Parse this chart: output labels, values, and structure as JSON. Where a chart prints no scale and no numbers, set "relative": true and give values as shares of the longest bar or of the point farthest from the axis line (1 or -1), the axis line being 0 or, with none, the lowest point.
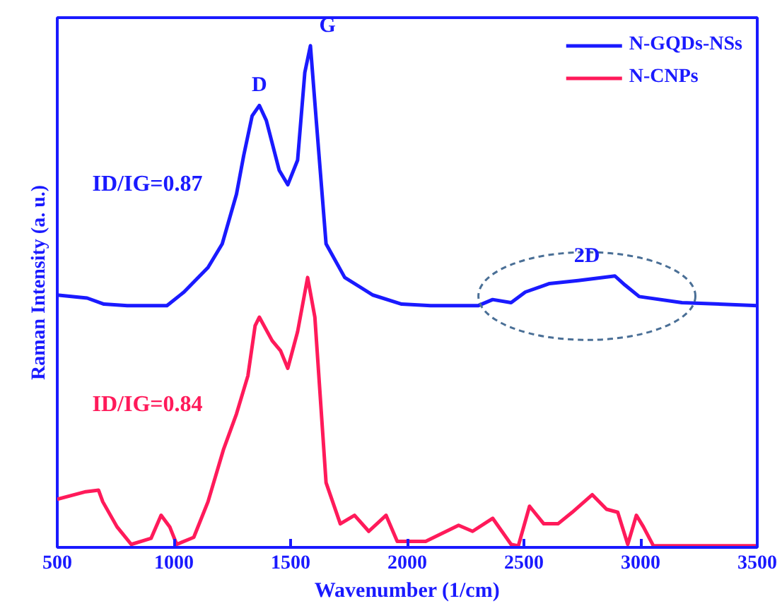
{
  "chart_data": {
    "type": "line",
    "relative": true,
    "xlabel": "Wavenumber (1/cm)",
    "ylabel": "Raman Intensity (a. u.)",
    "xlim": [
      500,
      3500
    ],
    "xticks": [
      500,
      1000,
      1500,
      2000,
      2500,
      3000,
      3500
    ],
    "grid": false,
    "legend": "top right",
    "marker": "none",
    "line_style": "solid",
    "series": [
      {
        "name": "N-GQDs-NSs",
        "color": "#1a1aff",
        "x": [
          500,
          628,
          700,
          800,
          900,
          970,
          1043,
          1146,
          1207,
          1268,
          1299,
          1335,
          1366,
          1396,
          1451,
          1488,
          1530,
          1561,
          1585,
          1610,
          1652,
          1732,
          1853,
          1976,
          2100,
          2305,
          2366,
          2445,
          2506,
          2610,
          2732,
          2890,
          2933,
          2994,
          3177,
          3500
        ],
        "values": [
          0.503,
          0.497,
          0.485,
          0.482,
          0.482,
          0.482,
          0.509,
          0.558,
          0.605,
          0.704,
          0.781,
          0.86,
          0.881,
          0.851,
          0.752,
          0.723,
          0.772,
          0.947,
          1.0,
          0.851,
          0.605,
          0.538,
          0.503,
          0.485,
          0.482,
          0.482,
          0.494,
          0.488,
          0.509,
          0.526,
          0.532,
          0.541,
          0.523,
          0.5,
          0.488,
          0.482
        ]
      },
      {
        "name": "N-CNPs",
        "color": "#ff1a5a",
        "x": [
          500,
          622,
          677,
          695,
          756,
          817,
          902,
          945,
          982,
          1012,
          1085,
          1146,
          1213,
          1268,
          1317,
          1348,
          1366,
          1421,
          1457,
          1488,
          1530,
          1573,
          1604,
          1652,
          1713,
          1774,
          1835,
          1909,
          1957,
          2079,
          2220,
          2280,
          2366,
          2445,
          2476,
          2524,
          2585,
          2646,
          2707,
          2793,
          2854,
          2902,
          2945,
          2982,
          3012,
          3055,
          3500
        ],
        "values": [
          0.096,
          0.111,
          0.114,
          0.091,
          0.041,
          0.006,
          0.018,
          0.064,
          0.041,
          0.006,
          0.02,
          0.091,
          0.196,
          0.266,
          0.342,
          0.442,
          0.459,
          0.412,
          0.392,
          0.357,
          0.43,
          0.538,
          0.459,
          0.129,
          0.047,
          0.064,
          0.032,
          0.064,
          0.012,
          0.012,
          0.044,
          0.032,
          0.058,
          0.006,
          0.003,
          0.082,
          0.047,
          0.047,
          0.07,
          0.105,
          0.076,
          0.07,
          0.006,
          0.064,
          0.041,
          0.003,
          0.003
        ]
      }
    ],
    "annotations": [
      {
        "text": "D",
        "x": 1366,
        "y": 0.881
      },
      {
        "text": "G",
        "x": 1585,
        "y": 1.0
      },
      {
        "text": "2D",
        "x": 2770,
        "y": 0.541
      },
      "ID/IG=0.87",
      "ID/IG=0.84"
    ]
  }
}
